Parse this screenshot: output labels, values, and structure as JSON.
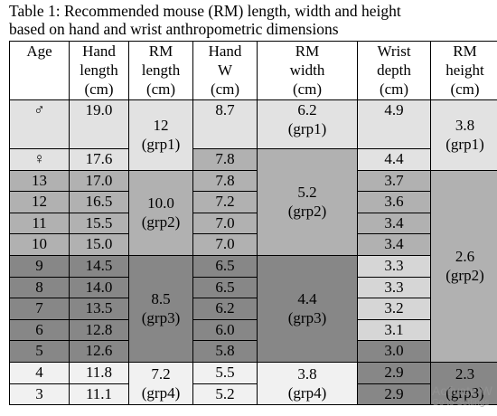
{
  "caption": [
    "Table 1: Recommended mouse (RM) length, width and height",
    "based on hand and wrist anthropometric dimensions"
  ],
  "table": {
    "header": [
      [
        "Age"
      ],
      [
        "Hand",
        "length",
        "(cm)"
      ],
      [
        "RM",
        "length",
        "(cm)"
      ],
      [
        "Hand",
        "W",
        "(cm)"
      ],
      [
        "RM",
        "width",
        "(cm)"
      ],
      [
        "Wrist",
        "depth",
        "(cm)"
      ],
      [
        "RM",
        "height",
        "(cm)"
      ]
    ],
    "rows": [
      [
        "♂",
        "19.0",
        [
          "12",
          "(grp1)"
        ],
        "8.7",
        [
          "6.2",
          "(grp1)"
        ],
        "4.9",
        [
          "3.8",
          "(grp1)"
        ]
      ],
      [
        "♀",
        "17.6",
        "7.8",
        [
          "5.2",
          "(grp2)"
        ],
        "4.4"
      ],
      [
        "13",
        "17.0",
        [
          "10.0",
          "(grp2)"
        ],
        "7.8",
        "3.7",
        [
          "2.6",
          "(grp2)"
        ]
      ],
      [
        "12",
        "16.5",
        "7.2",
        "3.6"
      ],
      [
        "11",
        "15.5",
        "7.0",
        "3.4"
      ],
      [
        "10",
        "15.0",
        "7.0",
        "3.4"
      ],
      [
        "9",
        "14.5",
        [
          "8.5",
          "(grp3)"
        ],
        "6.5",
        [
          "4.4",
          "(grp3)"
        ],
        "3.3"
      ],
      [
        "8",
        "14.0",
        "6.5",
        "3.3"
      ],
      [
        "7",
        "13.5",
        "6.2",
        "3.2"
      ],
      [
        "6",
        "12.8",
        "6.0",
        "3.1"
      ],
      [
        "5",
        "12.6",
        "5.8",
        "3.0"
      ],
      [
        "4",
        "11.8",
        [
          "7.2",
          "(grp4)"
        ],
        "5.5",
        [
          "3.8",
          "(grp4)"
        ],
        "2.9",
        [
          "2.3",
          "(grp3)"
        ]
      ],
      [
        "3",
        "11.1",
        "5.2",
        "2.9"
      ]
    ]
  },
  "watermark": [
    "Activate W",
    "Go to Settings"
  ]
}
